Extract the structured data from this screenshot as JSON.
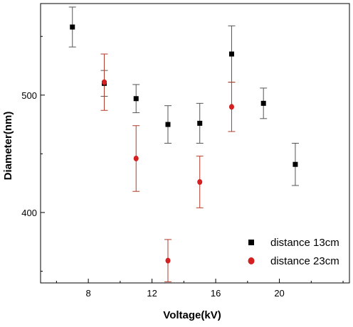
{
  "chart_data": {
    "type": "scatter",
    "xlabel": "Voltage(kV)",
    "ylabel": "Diameter(nm)",
    "xlim": [
      5,
      24.4
    ],
    "ylim": [
      340,
      578
    ],
    "x_ticks": [
      8,
      12,
      16,
      20
    ],
    "y_ticks": [
      400,
      500
    ],
    "x_tick_labels": [
      "8",
      "12",
      "16",
      "20"
    ],
    "y_tick_labels": [
      "400",
      "500"
    ],
    "legend_position": "bottom-right",
    "series": [
      {
        "name": "distance 13cm",
        "marker": "square",
        "color": "#000000",
        "error_color": "#555555",
        "points": [
          {
            "x": 7,
            "y": 558,
            "err": 17
          },
          {
            "x": 9,
            "y": 510,
            "err": 11
          },
          {
            "x": 11,
            "y": 497,
            "err": 12
          },
          {
            "x": 13,
            "y": 475,
            "err": 16
          },
          {
            "x": 15,
            "y": 476,
            "err": 17
          },
          {
            "x": 17,
            "y": 535,
            "err": 24
          },
          {
            "x": 19,
            "y": 493,
            "err": 13
          },
          {
            "x": 21,
            "y": 441,
            "err": 18
          }
        ]
      },
      {
        "name": "distance 23cm",
        "marker": "circle",
        "color": "#d42020",
        "error_color": "#b33a2a",
        "points": [
          {
            "x": 9,
            "y": 511,
            "err": 24
          },
          {
            "x": 11,
            "y": 446,
            "err": 28
          },
          {
            "x": 13,
            "y": 359,
            "err": 18
          },
          {
            "x": 15,
            "y": 426,
            "err": 22
          },
          {
            "x": 17,
            "y": 490,
            "err": 21
          }
        ]
      }
    ]
  }
}
